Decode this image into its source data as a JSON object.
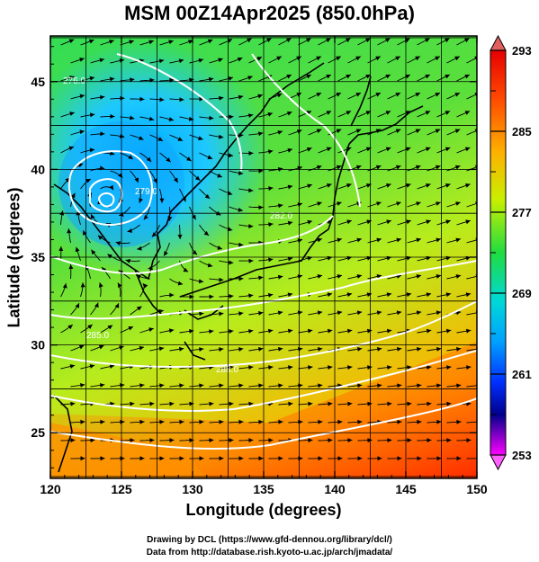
{
  "title": "MSM 00Z14Apr2025 (850.0hPa)",
  "xlabel": "Longitude (degrees)",
  "ylabel": "Latitude  (degrees)",
  "footer_line1": "Drawing by DCL (https://www.gfd-dennou.org/library/dcl/)",
  "footer_line2": "Data from http://database.rish.kyoto-u.ac.jp/arch/jmadata/",
  "chart_data": {
    "type": "heatmap",
    "title": "MSM 00Z14Apr2025 (850.0hPa)",
    "xlabel": "Longitude (degrees)",
    "ylabel": "Latitude  (degrees)",
    "xlim": [
      120,
      150
    ],
    "ylim": [
      22.4,
      47.6
    ],
    "x_ticks": [
      120,
      125,
      130,
      135,
      140,
      145,
      150
    ],
    "y_ticks": [
      25,
      30,
      35,
      40,
      45
    ],
    "colorbar": {
      "min": 253,
      "max": 293,
      "tick_labels": [
        293,
        285,
        277,
        269,
        261,
        253
      ],
      "colors": [
        "#ff00ff",
        "#0000b4",
        "#0050ff",
        "#00c8ff",
        "#00dc64",
        "#50e600",
        "#c8f000",
        "#ffaa00",
        "#ff3c00",
        "#e60000"
      ]
    },
    "contour_labels": [
      "276.0",
      "279.0",
      "282.0",
      "285.0",
      "288.0"
    ],
    "field": "temperature (K) with wind streamlines",
    "low_center": {
      "lon": 124,
      "lat": 38.5
    }
  }
}
